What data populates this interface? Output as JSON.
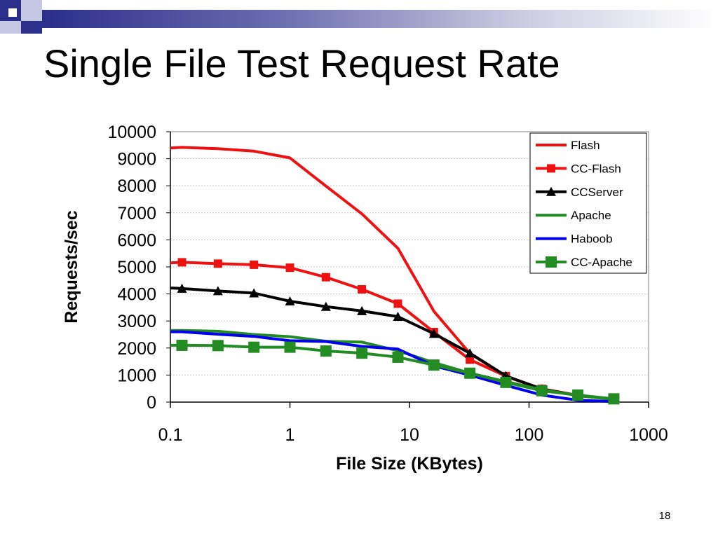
{
  "slide": {
    "title": "Single File Test Request Rate",
    "page_number": "18"
  },
  "colors": {
    "header_dark": "#2b2e8a",
    "header_mid": "#7d80c4",
    "header_light": "#c9cadf",
    "flash": "#ee1111",
    "cc_flash": "#ee1111",
    "ccserver": "#000000",
    "apache": "#228b22",
    "haboob": "#0000ee",
    "cc_apache": "#228b22"
  },
  "chart_data": {
    "type": "line",
    "xscale": "log",
    "xlabel": "File Size (KBytes)",
    "ylabel": "Requests/sec",
    "xlim": [
      0.1,
      1000
    ],
    "ylim": [
      0,
      10000
    ],
    "xticks": [
      "0.1",
      "1",
      "10",
      "100",
      "1000"
    ],
    "yticks": [
      "0",
      "1000",
      "2000",
      "3000",
      "4000",
      "5000",
      "6000",
      "7000",
      "8000",
      "9000",
      "10000"
    ],
    "grid": true,
    "legend_position": "top-right",
    "series": [
      {
        "name": "Flash",
        "color": "#ee1111",
        "marker": "none",
        "x": [
          0.1,
          0.125,
          0.25,
          0.5,
          1,
          2,
          4,
          8,
          16,
          32,
          64,
          128,
          256,
          512
        ],
        "y": [
          9400,
          9420,
          9370,
          9280,
          9030,
          7990,
          6960,
          5690,
          3360,
          1800,
          950,
          490,
          240,
          110
        ]
      },
      {
        "name": "CC-Flash",
        "color": "#ee1111",
        "marker": "square",
        "x": [
          0.1,
          0.125,
          0.25,
          0.5,
          1,
          2,
          4,
          8,
          16,
          32,
          64,
          128,
          256,
          512
        ],
        "y": [
          5150,
          5170,
          5120,
          5080,
          4970,
          4620,
          4170,
          3640,
          2590,
          1570,
          960,
          490,
          250,
          110
        ]
      },
      {
        "name": "CCServer",
        "color": "#000000",
        "marker": "triangle",
        "x": [
          0.1,
          0.125,
          0.25,
          0.5,
          1,
          2,
          4,
          8,
          16,
          32,
          64,
          128,
          256,
          512
        ],
        "y": [
          4220,
          4200,
          4110,
          4030,
          3730,
          3530,
          3370,
          3160,
          2530,
          1810,
          970,
          480,
          240,
          110
        ]
      },
      {
        "name": "Apache",
        "color": "#228b22",
        "marker": "none",
        "x": [
          0.1,
          0.125,
          0.25,
          0.5,
          1,
          2,
          4,
          8,
          16,
          32,
          64,
          128,
          256,
          512
        ],
        "y": [
          2650,
          2650,
          2620,
          2500,
          2420,
          2250,
          2220,
          1900,
          1460,
          1070,
          760,
          460,
          240,
          100
        ]
      },
      {
        "name": "Haboob",
        "color": "#0000ee",
        "marker": "none",
        "x": [
          0.1,
          0.125,
          0.25,
          0.5,
          1,
          2,
          4,
          8,
          16,
          32,
          64,
          128,
          256,
          512
        ],
        "y": [
          2600,
          2600,
          2510,
          2430,
          2270,
          2240,
          2060,
          1960,
          1340,
          1000,
          620,
          260,
          70,
          20
        ]
      },
      {
        "name": "CC-Apache",
        "color": "#228b22",
        "marker": "square-large",
        "x": [
          0.1,
          0.125,
          0.25,
          0.5,
          1,
          2,
          4,
          8,
          16,
          32,
          64,
          128,
          256,
          512
        ],
        "y": [
          2100,
          2100,
          2090,
          2030,
          2030,
          1890,
          1810,
          1660,
          1370,
          1070,
          730,
          420,
          260,
          120
        ]
      }
    ]
  }
}
